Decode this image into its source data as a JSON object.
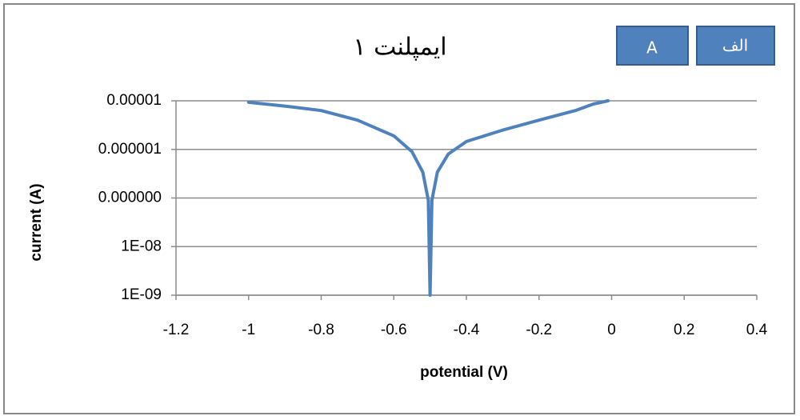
{
  "chart_data": {
    "type": "line",
    "title": "ایمپلنت ۱",
    "annotations": [
      "A",
      "الف"
    ],
    "x_label": "potential (V)",
    "y_label": "current (A)",
    "x": [
      -1,
      -0.9,
      -0.8,
      -0.7,
      -0.6,
      -0.55,
      -0.52,
      -0.505,
      -0.5,
      -0.495,
      -0.48,
      -0.45,
      -0.4,
      -0.3,
      -0.2,
      -0.1,
      -0.05,
      -0.01
    ],
    "series": [
      {
        "name": "current",
        "color": "#4f81bd",
        "values": [
          9.3e-06,
          7.8e-06,
          6.3e-06,
          4e-06,
          1.9e-06,
          9e-07,
          3.4e-07,
          9e-08,
          1e-09,
          9e-08,
          3.4e-07,
          8e-07,
          1.45e-06,
          2.5e-06,
          4e-06,
          6.3e-06,
          8.6e-06,
          1e-05
        ]
      }
    ],
    "xlim": [
      -1.2,
      0.4
    ],
    "xticks": [
      -1.2,
      -1,
      -0.8,
      -0.6,
      -0.4,
      -0.2,
      0,
      0.2,
      0.4
    ],
    "ylim": [
      1e-09,
      1e-05
    ],
    "log_y": true,
    "yticks": [
      {
        "value": 1e-09,
        "label": "1E-09"
      },
      {
        "value": 1e-08,
        "label": "1E-08"
      },
      {
        "value": 1e-07,
        "label": "0.000000"
      },
      {
        "value": 1e-06,
        "label": "0.000001"
      },
      {
        "value": 1e-05,
        "label": "0.00001"
      }
    ],
    "grid": true
  }
}
